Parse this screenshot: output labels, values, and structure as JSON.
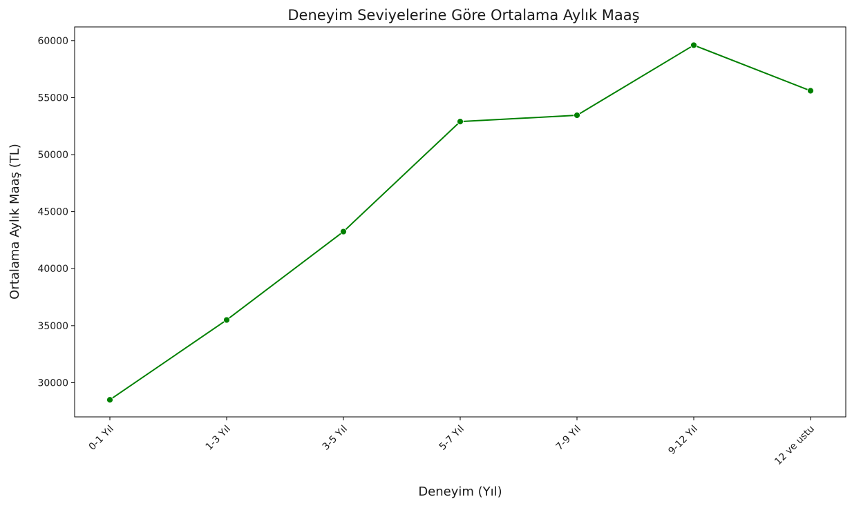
{
  "chart_data": {
    "type": "line",
    "title": "Deneyim Seviyelerine Göre Ortalama Aylık Maaş",
    "xlabel": "Deneyim (Yıl)",
    "ylabel": "Ortalama Aylık Maaş (TL)",
    "categories": [
      "0-1 Yıl",
      "1-3 Yıl",
      "3-5 Yıl",
      "5-7 Yıl",
      "7-9 Yıl",
      "9-12 Yıl",
      "12 ve ustu"
    ],
    "series": [
      {
        "values": [
          28500,
          35500,
          43250,
          52900,
          53450,
          59600,
          55600
        ]
      }
    ],
    "ylim": [
      27000,
      61200
    ],
    "yticks": [
      30000,
      35000,
      40000,
      45000,
      50000,
      55000,
      60000
    ],
    "grid": false,
    "line_color": "#008000",
    "marker": "circle"
  }
}
